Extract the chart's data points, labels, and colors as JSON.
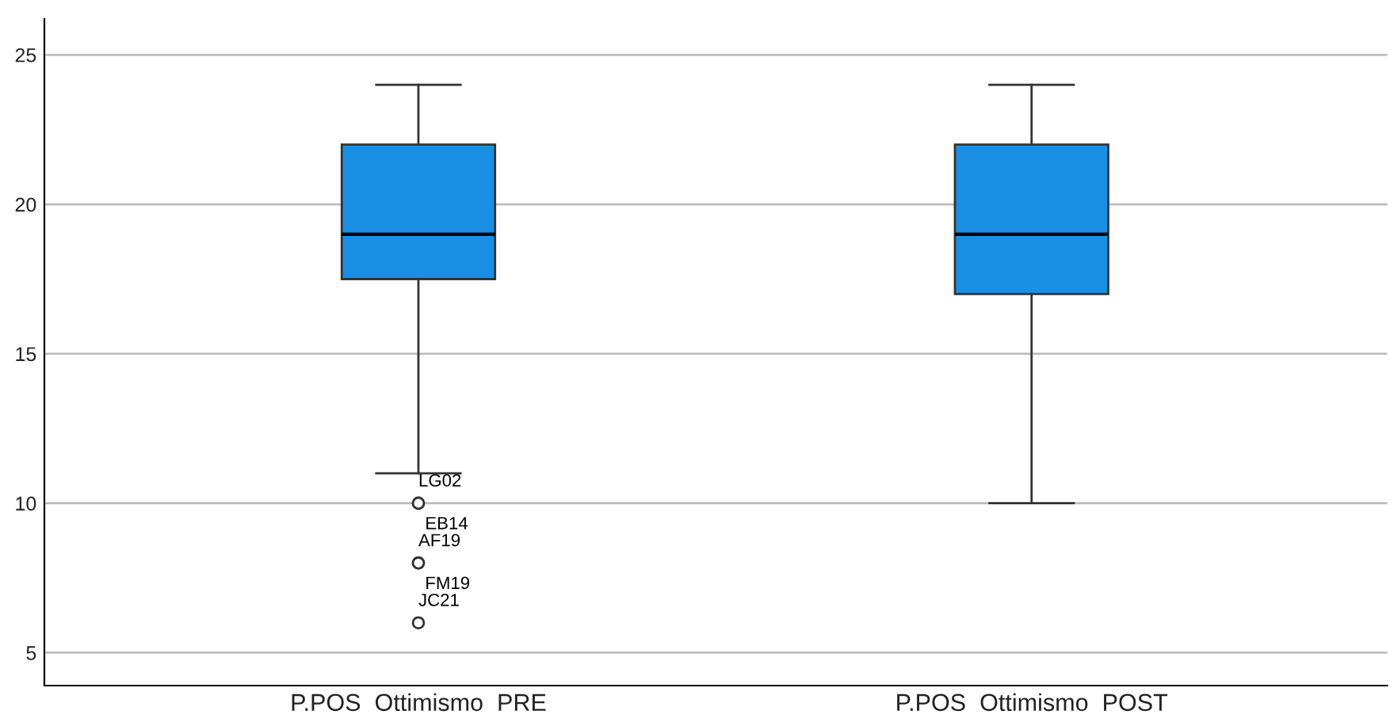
{
  "chart_data": {
    "type": "box",
    "categories": [
      "P.POS  Ottimismo  PRE",
      "P.POS  Ottimismo  POST"
    ],
    "boxes": [
      {
        "low": 11,
        "q1": 17.5,
        "median": 19,
        "q3": 22,
        "high": 24,
        "outliers": [
          10,
          10,
          8,
          8,
          6
        ]
      },
      {
        "low": 10,
        "q1": 17,
        "median": 19,
        "q3": 22,
        "high": 24
      }
    ],
    "color": "#1a8fe3",
    "ylim": [
      3.9,
      26.2
    ],
    "yticks": [
      5,
      10,
      15,
      20,
      25
    ],
    "grid": "y",
    "legend": false,
    "annotations": [
      "LG02",
      "EB14",
      "AF19",
      "FM19",
      "JC21"
    ]
  }
}
